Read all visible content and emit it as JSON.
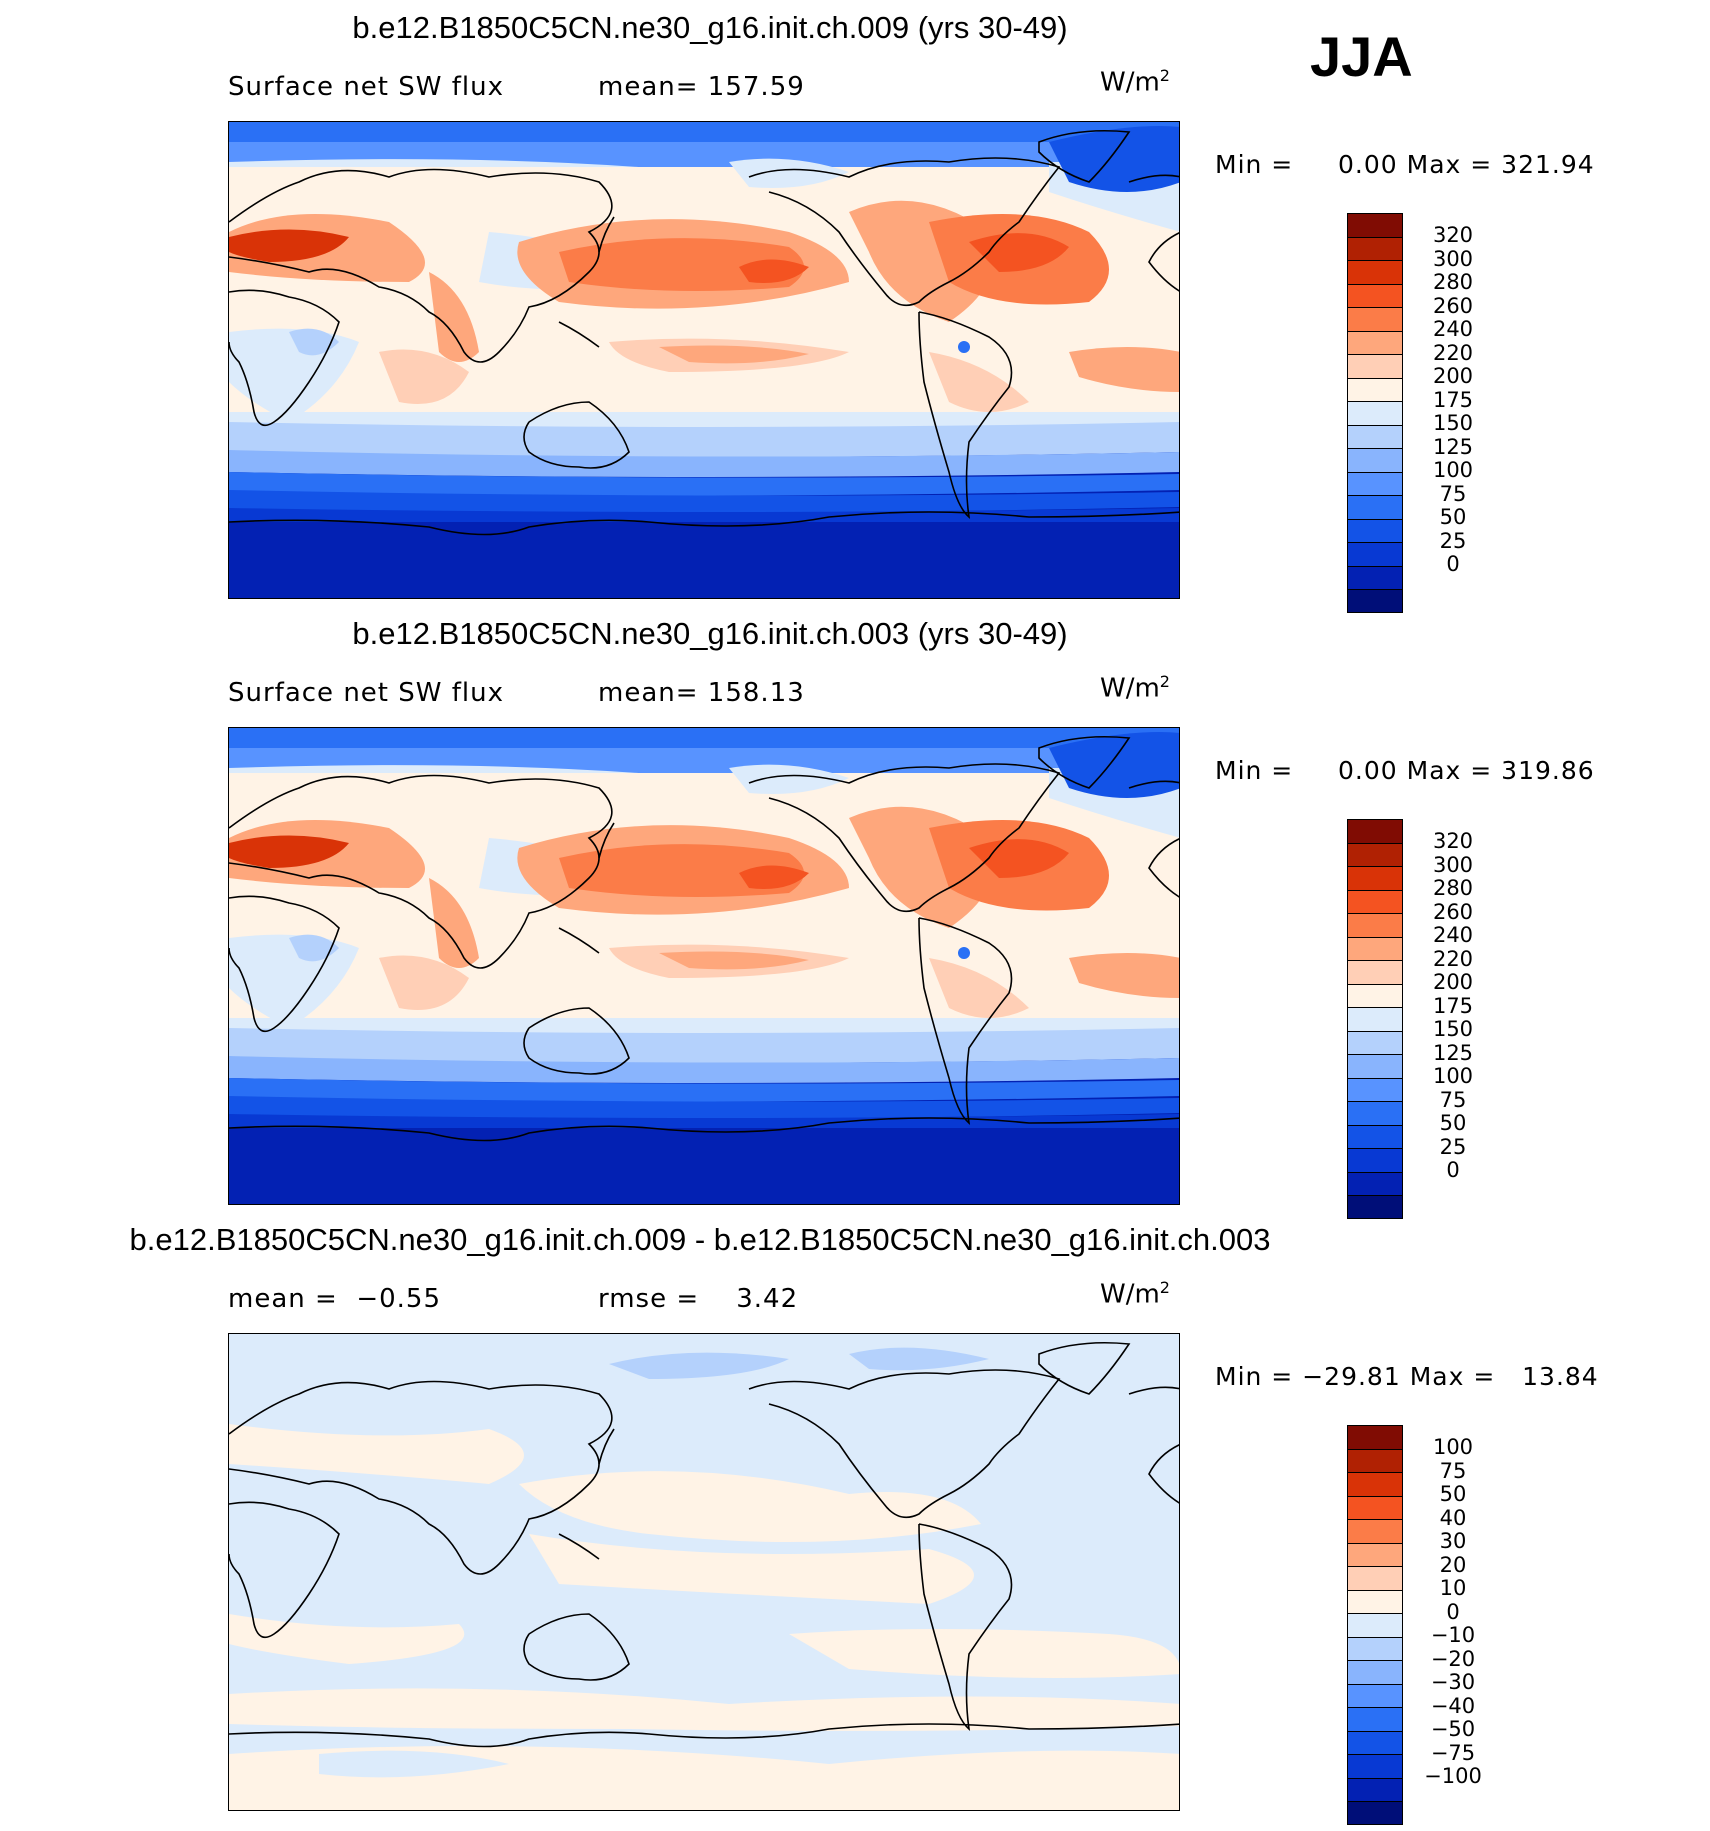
{
  "figure": {
    "season": "JJA"
  },
  "colors": {
    "abs_scale": [
      "#000e78",
      "#0321b3",
      "#0839d3",
      "#1353e7",
      "#2a70f5",
      "#5893ff",
      "#89b4fd",
      "#b4d1fc",
      "#dcebfb",
      "#fff3e6",
      "#ffcfb6",
      "#fea77c",
      "#fb7c48",
      "#f45321",
      "#d93307",
      "#b02103",
      "#800c03"
    ],
    "diff_scale": [
      "#000e78",
      "#0321b3",
      "#0839d3",
      "#1353e7",
      "#2a70f5",
      "#5893ff",
      "#89b4fd",
      "#b4d1fc",
      "#dcebfb",
      "#fff3e6",
      "#ffcfb6",
      "#fea77c",
      "#fb7c48",
      "#f45321",
      "#d93307",
      "#b02103",
      "#800c03"
    ]
  },
  "chart_data": [
    {
      "type": "heatmap",
      "title": "b.e12.B1850C5CN.ne30_g16.init.ch.009 (yrs 30-49)",
      "variable": "Surface net SW flux",
      "mean_label": "mean=",
      "mean": "157.59",
      "units": "W/m",
      "units_sup": "2",
      "min_label": "Min =",
      "min": "0.00",
      "max_label": "Max =",
      "max": "321.94",
      "colorbar_levels": [
        "320",
        "300",
        "280",
        "260",
        "240",
        "220",
        "200",
        "175",
        "150",
        "125",
        "100",
        "75",
        "50",
        "25",
        "0"
      ]
    },
    {
      "type": "heatmap",
      "title": "b.e12.B1850C5CN.ne30_g16.init.ch.003 (yrs 30-49)",
      "variable": "Surface net SW flux",
      "mean_label": "mean=",
      "mean": "158.13",
      "units": "W/m",
      "units_sup": "2",
      "min_label": "Min =",
      "min": "0.00",
      "max_label": "Max =",
      "max": "319.86",
      "colorbar_levels": [
        "320",
        "300",
        "280",
        "260",
        "240",
        "220",
        "200",
        "175",
        "150",
        "125",
        "100",
        "75",
        "50",
        "25",
        "0"
      ]
    },
    {
      "type": "heatmap",
      "title": "b.e12.B1850C5CN.ne30_g16.init.ch.009 - b.e12.B1850C5CN.ne30_g16.init.ch.003",
      "mean_label": "mean =",
      "mean": "−0.55",
      "rmse_label": "rmse =",
      "rmse": "3.42",
      "units": "W/m",
      "units_sup": "2",
      "min_label": "Min =",
      "min": "−29.81",
      "max_label": "Max =",
      "max": "13.84",
      "colorbar_levels": [
        "100",
        "75",
        "50",
        "40",
        "30",
        "20",
        "10",
        "0",
        "−10",
        "−20",
        "−30",
        "−40",
        "−50",
        "−75",
        "−100"
      ]
    }
  ]
}
